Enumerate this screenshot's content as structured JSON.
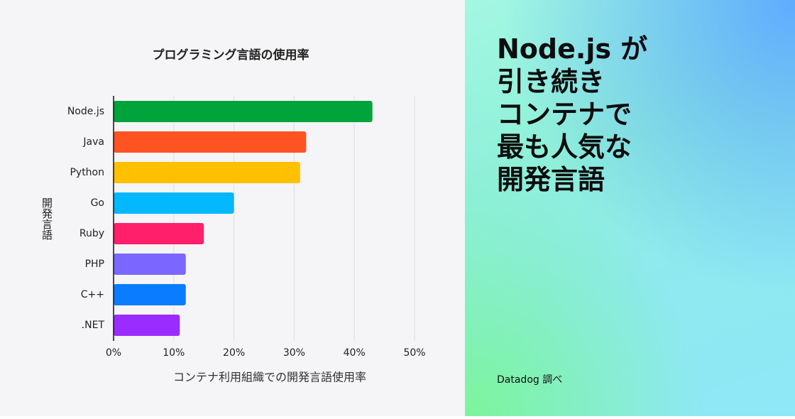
{
  "chart_data": {
    "type": "hbar",
    "title": "プログラミング言語の使用率",
    "x_label": "コンテナ利用組織での開発言語使用率",
    "y_label": "開発言語",
    "categories": [
      "Node.js",
      "Java",
      "Python",
      "Go",
      "Ruby",
      "PHP",
      "C++",
      ".NET"
    ],
    "values": [
      43,
      32,
      31,
      20,
      15,
      12,
      12,
      11
    ],
    "colors": [
      "#01a43b",
      "#ff5322",
      "#ffc000",
      "#04b8ff",
      "#ff1f6a",
      "#7b66ff",
      "#0a7cff",
      "#9b2cff"
    ],
    "xlim": [
      0,
      50
    ],
    "xticks": [
      {
        "value": 0,
        "label": "0%"
      },
      {
        "value": 10,
        "label": "10%"
      },
      {
        "value": 20,
        "label": "20%"
      },
      {
        "value": 30,
        "label": "30%"
      },
      {
        "value": 40,
        "label": "40%"
      },
      {
        "value": 50,
        "label": "50%"
      }
    ],
    "grid": true
  },
  "panel": {
    "headline": [
      "Node.js が",
      "引き続き",
      "コンテナで",
      "最も人気な",
      "開発言語"
    ],
    "source": "Datadog 調べ"
  }
}
